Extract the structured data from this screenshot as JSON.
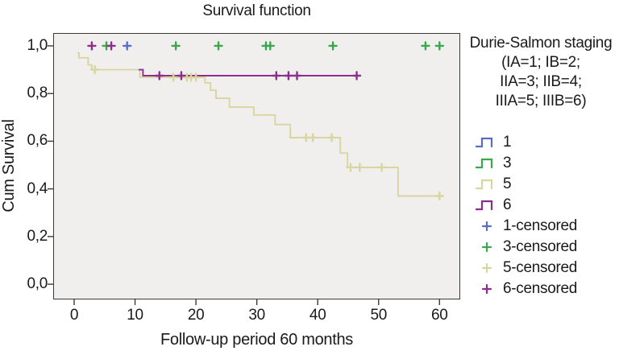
{
  "legend": {
    "title_lines": [
      "Durie-Salmon staging",
      "(IA=1; IB=2;",
      "IIA=3; IIB=4;",
      "IIIA=5; IIIB=6)"
    ],
    "items": [
      {
        "label": "1",
        "color": "#5a6cc5",
        "type": "step"
      },
      {
        "label": "3",
        "color": "#3aa64e",
        "type": "step"
      },
      {
        "label": "5",
        "color": "#d9d5a0",
        "type": "step"
      },
      {
        "label": "6",
        "color": "#8b2e8e",
        "type": "step"
      },
      {
        "label": "1-censored",
        "color": "#5a6cc5",
        "type": "plus"
      },
      {
        "label": "3-censored",
        "color": "#3aa64e",
        "type": "plus"
      },
      {
        "label": "5-censored",
        "color": "#d9d5a0",
        "type": "plus"
      },
      {
        "label": "6-censored",
        "color": "#8b2e8e",
        "type": "plus"
      }
    ]
  },
  "colors": {
    "stage1": "#5a6cc5",
    "stage3": "#3aa64e",
    "stage5": "#d9d5a0",
    "stage6": "#8b2e8e",
    "frame_border": "#3a3a3a",
    "plot_background": "#f0efee",
    "text": "#1a1a1a"
  },
  "chart_data": {
    "type": "line",
    "subtype": "kaplan-meier-step",
    "title": "Survival function",
    "xlabel": "Follow-up period 60 months",
    "ylabel": "Cum Survival",
    "xlim": [
      -3.44,
      63.4
    ],
    "ylim": [
      -0.064,
      1.054
    ],
    "grid": false,
    "legend_position": "right",
    "x_ticks": {
      "values": [
        0,
        10,
        20,
        30,
        40,
        50,
        60
      ],
      "labels": [
        "0",
        "10",
        "20",
        "30",
        "40",
        "50",
        "60"
      ]
    },
    "y_ticks": {
      "values": [
        0,
        0.2,
        0.4,
        0.6,
        0.8,
        1.0
      ],
      "labels": [
        "0,0",
        "0,2",
        "0,4",
        "0,6",
        "0,8",
        "1,0"
      ]
    },
    "series": [
      {
        "name": "1",
        "color": "#5a6cc5",
        "levels": [],
        "end": null,
        "censored": [
          [
            8.7,
            1.0
          ]
        ]
      },
      {
        "name": "3",
        "color": "#3aa64e",
        "levels": [],
        "end": null,
        "censored": [
          [
            5.3,
            1.0
          ],
          [
            16.7,
            1.0
          ],
          [
            23.7,
            1.0
          ],
          [
            31.5,
            1.0
          ],
          [
            32.2,
            1.0
          ],
          [
            42.5,
            1.0
          ],
          [
            57.7,
            1.0
          ],
          [
            60.0,
            1.0
          ]
        ]
      },
      {
        "name": "5",
        "color": "#d9d5a0",
        "levels": [
          [
            0.5,
            0.97
          ],
          [
            0.8,
            0.95
          ],
          [
            2.3,
            0.92
          ],
          [
            2.9,
            0.9
          ],
          [
            10.8,
            0.868
          ],
          [
            21.5,
            0.845
          ],
          [
            22.4,
            0.814
          ],
          [
            23.3,
            0.78
          ],
          [
            25.5,
            0.743
          ],
          [
            29.5,
            0.71
          ],
          [
            33.0,
            0.67
          ],
          [
            35.5,
            0.615
          ],
          [
            43.7,
            0.55
          ],
          [
            44.9,
            0.49
          ],
          [
            53.2,
            0.37
          ]
        ],
        "end": 60.3,
        "censored": [
          [
            3.4,
            0.9
          ],
          [
            16.3,
            0.868
          ],
          [
            18.5,
            0.868
          ],
          [
            19.2,
            0.868
          ],
          [
            20.0,
            0.868
          ],
          [
            38.1,
            0.615
          ],
          [
            39.2,
            0.615
          ],
          [
            42.3,
            0.615
          ],
          [
            45.4,
            0.49
          ],
          [
            46.9,
            0.49
          ],
          [
            50.5,
            0.49
          ],
          [
            60.0,
            0.37
          ]
        ]
      },
      {
        "name": "6",
        "color": "#8b2e8e",
        "levels": [
          [
            10.6,
            0.9
          ],
          [
            11.3,
            0.875
          ]
        ],
        "end": 47.0,
        "censored": [
          [
            2.9,
            1.0
          ],
          [
            6.1,
            1.0
          ],
          [
            14.0,
            0.875
          ],
          [
            17.6,
            0.875
          ],
          [
            33.2,
            0.875
          ],
          [
            35.2,
            0.875
          ],
          [
            36.6,
            0.875
          ],
          [
            46.4,
            0.875
          ]
        ]
      }
    ]
  }
}
